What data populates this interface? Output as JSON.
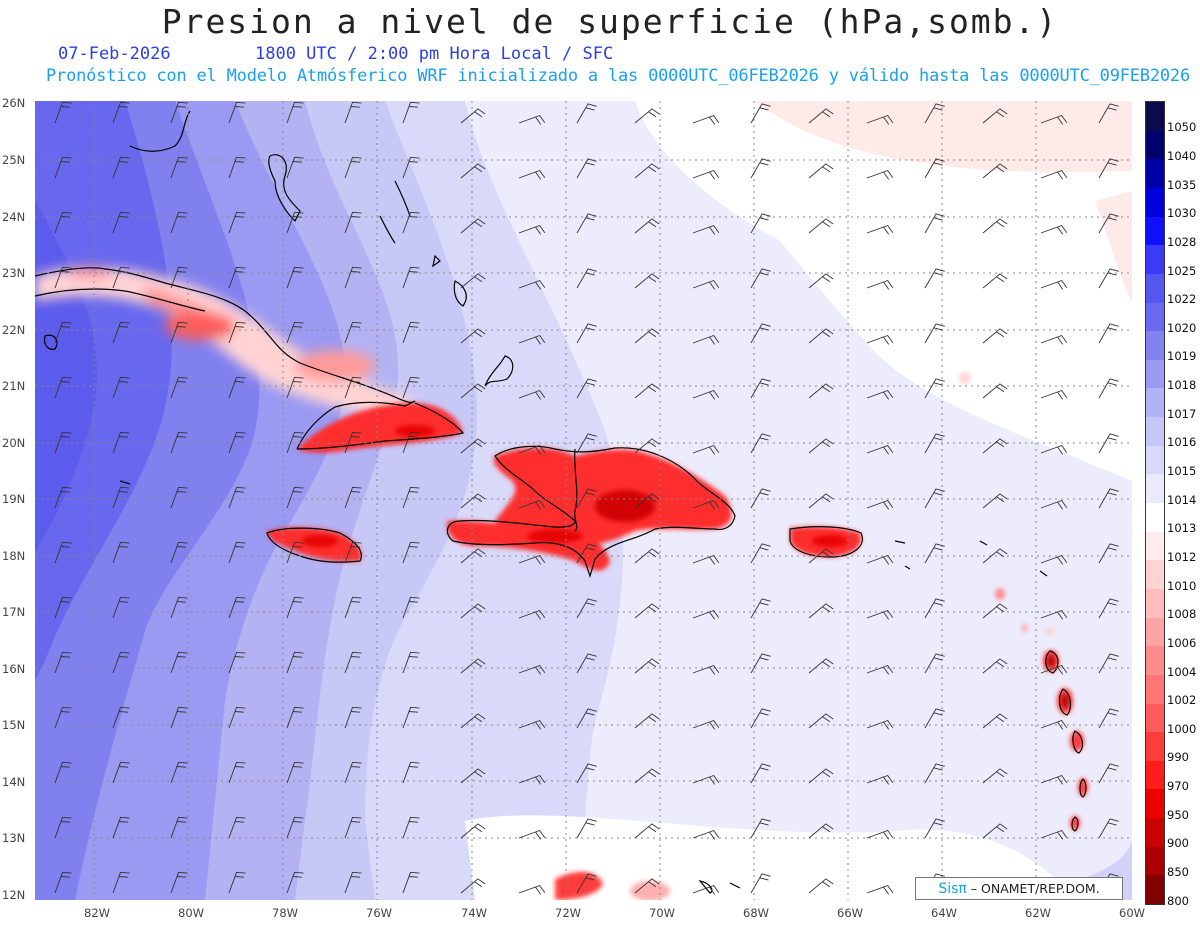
{
  "title": "Presion a nivel de superficie (hPa,somb.)",
  "date": "07-Feb-2026",
  "valid_time": "1800 UTC / 2:00 pm Hora Local / SFC",
  "subtitle": "Pronóstico con el Modelo Atmósferico WRF inicializado a las 0000UTC_06FEB2026 y válido hasta las  0000UTC_09FEB2026",
  "lat_labels": [
    "26N",
    "25N",
    "24N",
    "23N",
    "22N",
    "21N",
    "20N",
    "19N",
    "18N",
    "17N",
    "16N",
    "15N",
    "14N",
    "13N",
    "12N"
  ],
  "lon_labels": [
    "82W",
    "80W",
    "78W",
    "76W",
    "74W",
    "72W",
    "70W",
    "68W",
    "66W",
    "64W",
    "62W",
    "60W"
  ],
  "map_extent": {
    "lon_min": -83.2,
    "lon_max": -60.0,
    "lat_min": 11.9,
    "lat_max": 26.05
  },
  "legend": {
    "levels": [
      "1050",
      "1040",
      "1035",
      "1030",
      "1028",
      "1025",
      "1022",
      "1020",
      "1019",
      "1018",
      "1017",
      "1016",
      "1015",
      "1014",
      "1013",
      "1012",
      "1010",
      "1008",
      "1006",
      "1004",
      "1002",
      "1000",
      "990",
      "970",
      "950",
      "900",
      "850",
      "800"
    ],
    "colors": [
      "#0b0b4c",
      "#00006e",
      "#0000a6",
      "#0000dc",
      "#1010ff",
      "#3a3af7",
      "#5656f0",
      "#6a6aee",
      "#8282f0",
      "#9a9af2",
      "#b2b2f4",
      "#c6c6f6",
      "#d8d8f9",
      "#eaeafc",
      "#ffffff",
      "#ffebeb",
      "#ffd3d3",
      "#ffbcbc",
      "#ffa4a4",
      "#ff8c8c",
      "#ff7474",
      "#ff5b5b",
      "#ff3c3c",
      "#ff1c1c",
      "#ee0000",
      "#cc0000",
      "#aa0000",
      "#820000"
    ]
  },
  "credit": {
    "brand": "Sisπ",
    "text": " – ONAMET/REP.DOM."
  }
}
